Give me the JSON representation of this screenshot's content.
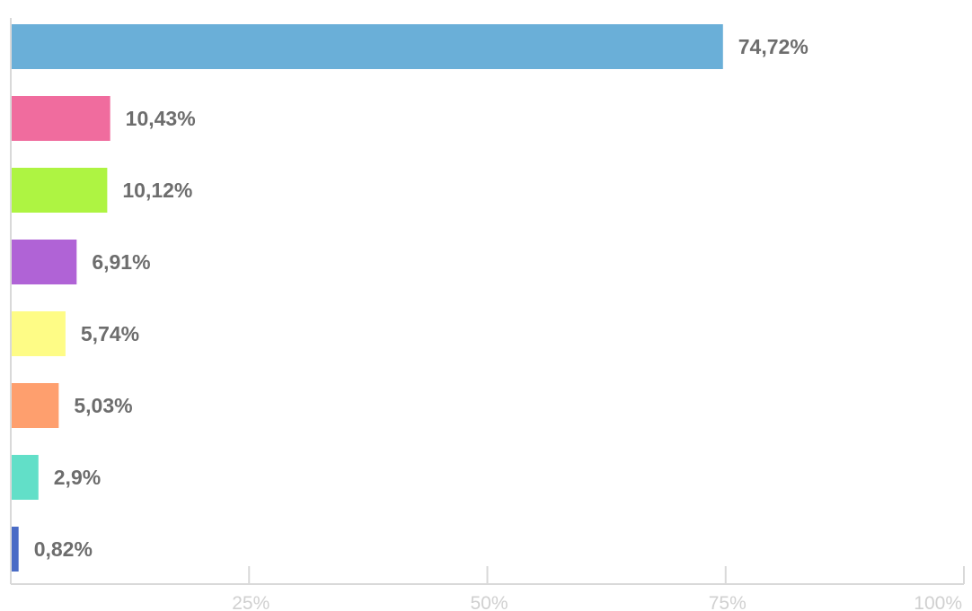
{
  "chart_data": {
    "type": "bar",
    "orientation": "horizontal",
    "title": "",
    "xlabel": "",
    "ylabel": "",
    "xlim": [
      0,
      100
    ],
    "grid": false,
    "legend": "none",
    "ticks": [
      {
        "value": 25,
        "label": "25%"
      },
      {
        "value": 50,
        "label": "50%"
      },
      {
        "value": 75,
        "label": "75%"
      },
      {
        "value": 100,
        "label": "100%"
      }
    ],
    "bars": [
      {
        "value": 74.72,
        "label": "74,72%",
        "color": "#6aafd8"
      },
      {
        "value": 10.43,
        "label": "10,43%",
        "color": "#f06c9e"
      },
      {
        "value": 10.12,
        "label": "10,12%",
        "color": "#aef442"
      },
      {
        "value": 6.91,
        "label": "6,91%",
        "color": "#b063d6"
      },
      {
        "value": 5.74,
        "label": "5,74%",
        "color": "#fefc86"
      },
      {
        "value": 5.03,
        "label": "5,03%",
        "color": "#fe9f6e"
      },
      {
        "value": 2.9,
        "label": "2,9%",
        "color": "#62dfc8"
      },
      {
        "value": 0.82,
        "label": "0,82%",
        "color": "#4a6cc6"
      }
    ]
  }
}
